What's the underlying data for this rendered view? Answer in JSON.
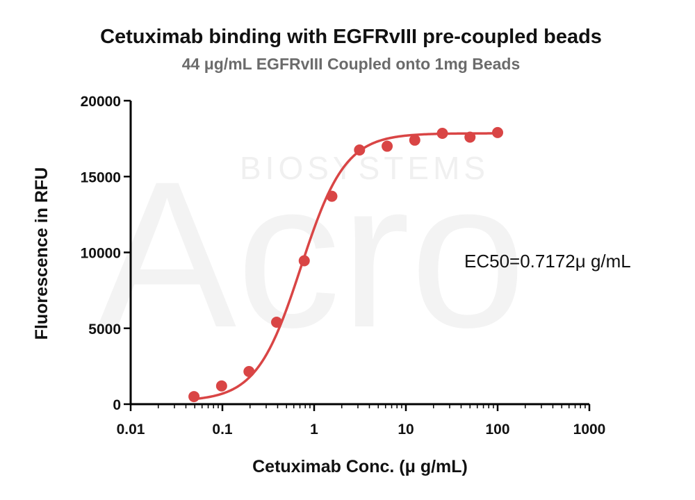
{
  "chart_data": {
    "type": "scatter",
    "title": "Cetuximab binding with EGFRvIII pre-coupled beads",
    "subtitle": "44 μg/mL EGFRvIII Coupled onto 1mg Beads",
    "xlabel": "Cetuximab Conc. (μ g/mL)",
    "ylabel": "Fluorescence in RFU",
    "x_scale": "log",
    "xlim": [
      0.01,
      1000
    ],
    "ylim": [
      0,
      20000
    ],
    "x_ticks": [
      "0.01",
      "0.1",
      "1",
      "10",
      "100",
      "1000"
    ],
    "y_ticks": [
      "0",
      "5000",
      "10000",
      "15000",
      "20000"
    ],
    "grid": false,
    "legend": "none",
    "series_color": "#d94545",
    "points": {
      "x": [
        0.049,
        0.098,
        0.195,
        0.39,
        0.78,
        1.56,
        3.125,
        6.25,
        12.5,
        25,
        50,
        100
      ],
      "y": [
        500,
        1200,
        2150,
        5400,
        9450,
        13700,
        16750,
        17000,
        17400,
        17850,
        17600,
        17900
      ]
    },
    "fit": {
      "model": "4PL",
      "bottom": 200,
      "top": 17850,
      "ec50": 0.7172,
      "hill": 1.8,
      "x_range": [
        0.049,
        100
      ]
    },
    "annotation": "EC50=0.7172μ g/mL",
    "watermark": {
      "logo_text": "Acro",
      "company_text": "BIOSYSTEMS"
    }
  }
}
